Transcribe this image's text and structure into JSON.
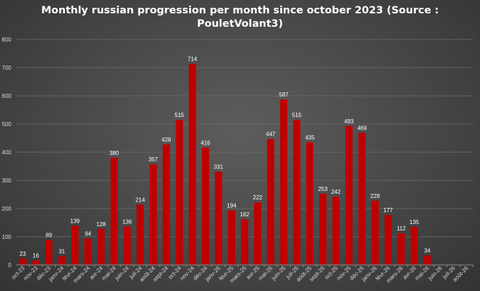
{
  "chart_data": {
    "type": "bar",
    "title_lines": [
      "Monthly russian progression per month since october 2023 (Source :",
      "PouletVolant3)"
    ],
    "ylim": [
      0,
      800
    ],
    "yticks": [
      0,
      100,
      200,
      300,
      400,
      500,
      600,
      700,
      800
    ],
    "grid": true,
    "legend": "none",
    "bar_color": "#c00000",
    "categories": [
      "oct-23",
      "nov-23",
      "déc-23",
      "janv-24",
      "févr-24",
      "mars-24",
      "avr-24",
      "mai-24",
      "juin-24",
      "juil-24",
      "août-24",
      "sept-24",
      "oct-24",
      "nov-24",
      "déc-24",
      "janv-25",
      "févr-25",
      "mars-25",
      "avr-25",
      "mai-25",
      "juin-25",
      "juil-25",
      "août-25",
      "sept-25",
      "oct-25",
      "nov-25",
      "déc-25",
      "janv-26",
      "févr-26",
      "mars-26",
      "avr-26",
      "mai-26",
      "juin-26",
      "juil-26",
      "août-26"
    ],
    "values": [
      23,
      16,
      89,
      31,
      139,
      94,
      128,
      380,
      136,
      214,
      357,
      428,
      515,
      714,
      416,
      331,
      194,
      162,
      222,
      447,
      587,
      515,
      435,
      253,
      242,
      493,
      469,
      228,
      177,
      112,
      135,
      34,
      null,
      null,
      null
    ]
  }
}
